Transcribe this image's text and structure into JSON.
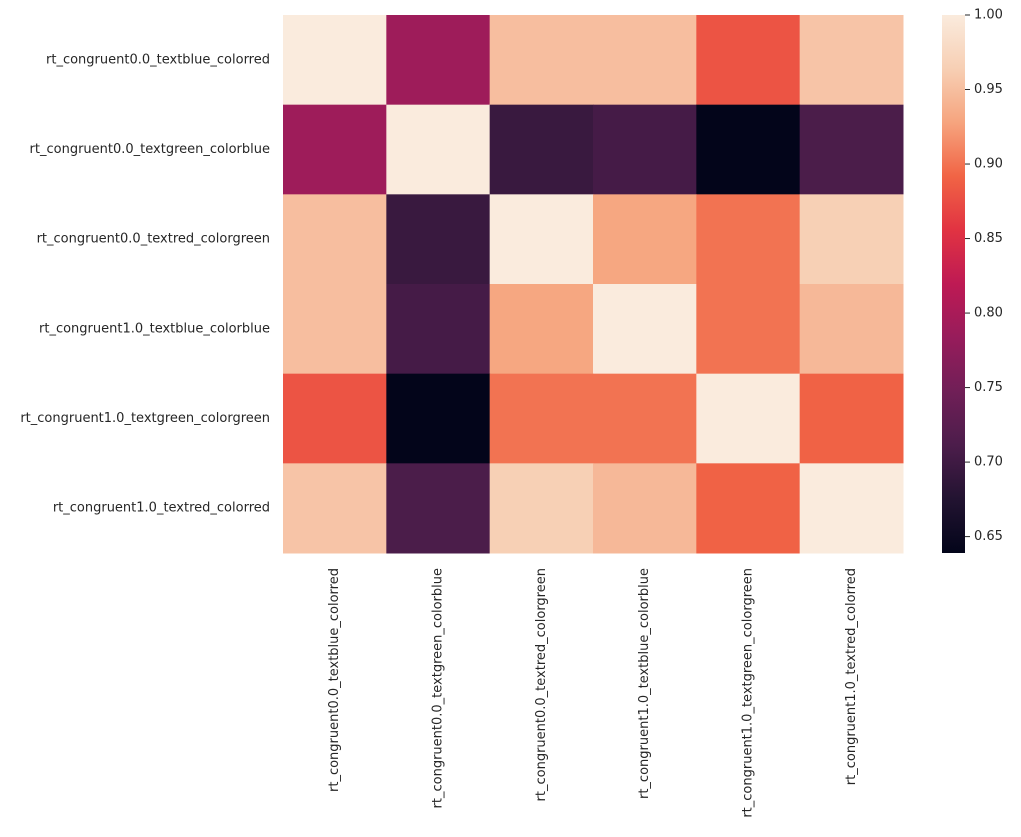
{
  "chart_data": {
    "type": "heatmap",
    "colormap": "rocket",
    "x_categories": [
      "rt_congruent0.0_textblue_colorred",
      "rt_congruent0.0_textgreen_colorblue",
      "rt_congruent0.0_textred_colorgreen",
      "rt_congruent1.0_textblue_colorblue",
      "rt_congruent1.0_textgreen_colorgreen",
      "rt_congruent1.0_textred_colorred"
    ],
    "y_categories": [
      "rt_congruent0.0_textblue_colorred",
      "rt_congruent0.0_textgreen_colorblue",
      "rt_congruent0.0_textred_colorgreen",
      "rt_congruent1.0_textblue_colorblue",
      "rt_congruent1.0_textgreen_colorgreen",
      "rt_congruent1.0_textred_colorred"
    ],
    "values": [
      [
        1,
        0.79,
        0.95,
        0.95,
        0.88,
        0.955
      ],
      [
        0.79,
        1,
        0.695,
        0.705,
        0.639,
        0.71
      ],
      [
        0.95,
        0.695,
        1,
        0.93,
        0.9,
        0.965
      ],
      [
        0.95,
        0.705,
        0.93,
        1,
        0.9,
        0.945
      ],
      [
        0.88,
        0.639,
        0.9,
        0.9,
        1,
        0.89
      ],
      [
        0.955,
        0.71,
        0.965,
        0.945,
        0.89,
        1
      ]
    ],
    "zlim": [
      0.639,
      1
    ],
    "zticks": [
      0.65,
      {
        "value": 0.7,
        "label": "0.70"
      },
      0.75,
      {
        "value": 0.8,
        "label": "0.80"
      },
      0.85,
      {
        "value": 0.9,
        "label": "0.90"
      },
      0.95,
      {
        "value": 1,
        "label": "1.00"
      }
    ]
  }
}
